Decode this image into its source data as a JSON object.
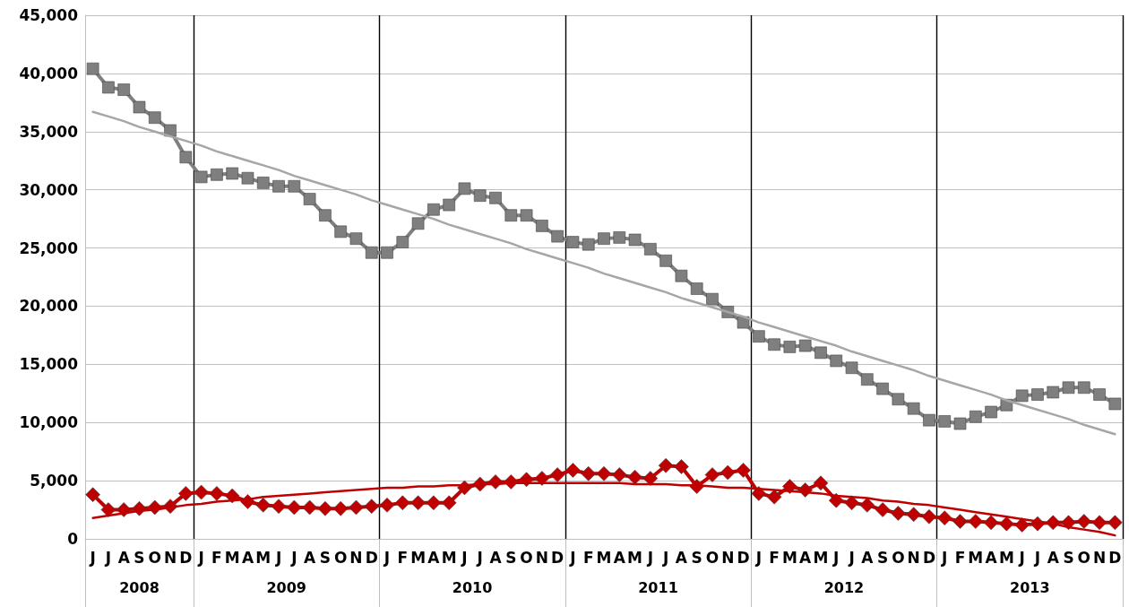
{
  "chart_data": {
    "type": "line",
    "categories": [
      "J",
      "J",
      "A",
      "S",
      "O",
      "N",
      "D",
      "J",
      "F",
      "M",
      "A",
      "M",
      "J",
      "J",
      "A",
      "S",
      "O",
      "N",
      "D",
      "J",
      "F",
      "M",
      "A",
      "M",
      "J",
      "J",
      "A",
      "S",
      "O",
      "N",
      "D",
      "J",
      "F",
      "M",
      "A",
      "M",
      "J",
      "J",
      "A",
      "S",
      "O",
      "N",
      "D",
      "J",
      "F",
      "M",
      "A",
      "M",
      "J",
      "J",
      "A",
      "S",
      "O",
      "N",
      "D",
      "J",
      "F",
      "M",
      "A",
      "M",
      "J",
      "J",
      "A",
      "S",
      "O",
      "N",
      "D"
    ],
    "series": [
      {
        "color": "#7f7f7f",
        "marker": "square",
        "values": [
          40400,
          38800,
          38600,
          37100,
          36200,
          35100,
          32800,
          31100,
          31300,
          31400,
          31000,
          30600,
          30300,
          30300,
          29200,
          27800,
          26400,
          25800,
          24600,
          24600,
          25500,
          27100,
          28300,
          28700,
          30100,
          29500,
          29300,
          27800,
          27800,
          26900,
          26000,
          25500,
          25300,
          25800,
          25900,
          25700,
          24900,
          23900,
          22600,
          21500,
          20600,
          19500,
          18600,
          17400,
          16700,
          16500,
          16600,
          16000,
          15300,
          14700,
          13700,
          12900,
          12000,
          11200,
          10200,
          10100,
          9900,
          10500,
          10900,
          11500,
          12300,
          12400,
          12600,
          13000,
          13000,
          12400,
          11600
        ]
      },
      {
        "color": "#c00000",
        "marker": "diamond",
        "values": [
          3800,
          2500,
          2500,
          2600,
          2700,
          2800,
          3900,
          4000,
          3900,
          3700,
          3200,
          2900,
          2800,
          2700,
          2700,
          2600,
          2600,
          2700,
          2800,
          2900,
          3100,
          3100,
          3100,
          3100,
          4400,
          4700,
          4900,
          4900,
          5100,
          5200,
          5500,
          5900,
          5600,
          5600,
          5500,
          5300,
          5200,
          6300,
          6200,
          4500,
          5500,
          5700,
          5900,
          3900,
          3600,
          4500,
          4200,
          4800,
          3300,
          3100,
          2900,
          2500,
          2200,
          2100,
          1900,
          1800,
          1500,
          1500,
          1400,
          1300,
          1200,
          1300,
          1400,
          1400,
          1500,
          1400,
          1400
        ]
      },
      {
        "color": "#a6a6a6",
        "marker": "none",
        "values": [
          36700,
          36300,
          35900,
          35400,
          35000,
          34600,
          34200,
          33800,
          33300,
          32900,
          32500,
          32100,
          31700,
          31200,
          30800,
          30400,
          30000,
          29600,
          29100,
          28700,
          28300,
          27900,
          27500,
          27000,
          26600,
          26200,
          25800,
          25400,
          24900,
          24500,
          24100,
          23700,
          23300,
          22800,
          22400,
          22000,
          21600,
          21200,
          20700,
          20300,
          19900,
          19500,
          19100,
          18600,
          18200,
          17800,
          17400,
          17000,
          16600,
          16100,
          15700,
          15300,
          14900,
          14500,
          14000,
          13600,
          13200,
          12800,
          12400,
          11900,
          11500,
          11100,
          10700,
          10300,
          9800,
          9400,
          9000
        ]
      },
      {
        "color": "#c00000",
        "marker": "none",
        "values": [
          1800,
          2000,
          2200,
          2400,
          2500,
          2700,
          2900,
          3000,
          3200,
          3300,
          3400,
          3600,
          3700,
          3800,
          3900,
          4000,
          4100,
          4200,
          4300,
          4400,
          4400,
          4500,
          4500,
          4600,
          4600,
          4700,
          4700,
          4800,
          4800,
          4800,
          4800,
          4800,
          4800,
          4800,
          4800,
          4700,
          4700,
          4700,
          4600,
          4600,
          4500,
          4400,
          4400,
          4300,
          4200,
          4100,
          4000,
          3900,
          3700,
          3600,
          3500,
          3300,
          3200,
          3000,
          2900,
          2700,
          2500,
          2300,
          2100,
          1900,
          1700,
          1500,
          1300,
          1000,
          800,
          600,
          300
        ]
      }
    ],
    "ylim": [
      0,
      45000
    ],
    "yticks": [
      0,
      {
        "value": 5000,
        "label": "5,000"
      },
      {
        "value": 10000,
        "label": "10,000"
      },
      {
        "value": 15000,
        "label": "15,000"
      },
      {
        "value": 20000,
        "label": "20,000"
      },
      {
        "value": 25000,
        "label": "25,000"
      },
      {
        "value": 30000,
        "label": "30,000"
      },
      {
        "value": 35000,
        "label": "35,000"
      },
      {
        "value": 40000,
        "label": "40,000"
      },
      {
        "value": 45000,
        "label": "45,000"
      }
    ],
    "grid": "y",
    "annotations": [
      "2008",
      "2009",
      "2010",
      "2011",
      "2012",
      "2013"
    ]
  }
}
